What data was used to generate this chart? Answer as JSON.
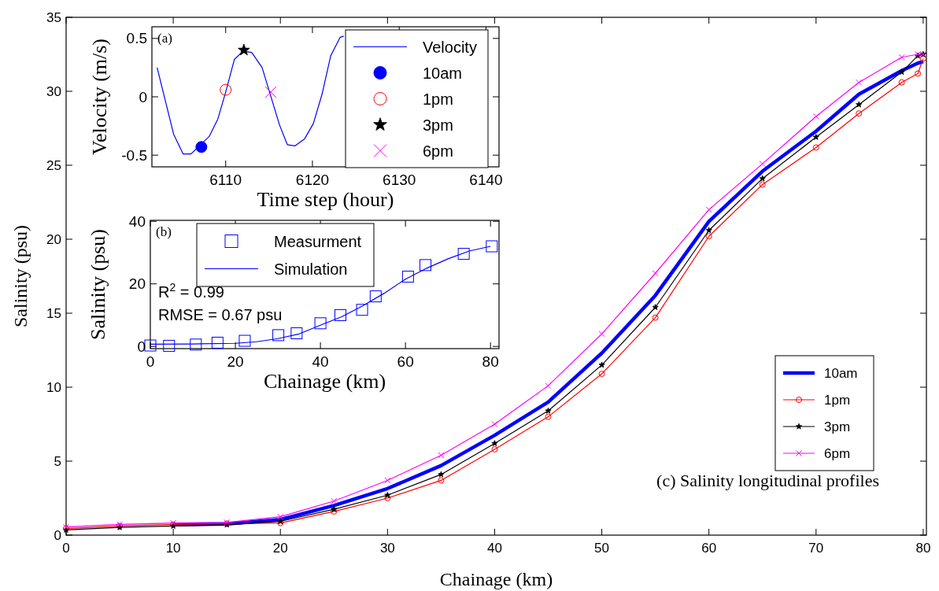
{
  "chart_data": [
    {
      "type": "line",
      "title": "(a)",
      "xlabel": "Time step (hour)",
      "ylabel": "Velocity (m/s)",
      "xlim": [
        6101.5,
        6141.5
      ],
      "ylim": [
        -0.6,
        0.6
      ],
      "xticks": [
        6110,
        6120,
        6130,
        6140
      ],
      "yticks": [
        -0.5,
        0,
        0.5
      ],
      "legend": "right",
      "series": [
        {
          "name": "Velocity",
          "color": "#0000ff",
          "marker": "none",
          "x": [
            6102.1,
            6104.0,
            6105.1,
            6106.0,
            6108.1,
            6109.1,
            6110.0,
            6111.0,
            6112.0,
            6113.0,
            6114.2,
            6116.2,
            6117.1,
            6118.0,
            6119.1,
            6120.1,
            6121.1,
            6122.1,
            6123.2,
            6123.6
          ],
          "values": [
            0.25,
            -0.32,
            -0.49,
            -0.49,
            -0.34,
            -0.19,
            0.04,
            0.32,
            0.39,
            0.38,
            0.25,
            -0.24,
            -0.41,
            -0.42,
            -0.36,
            -0.23,
            0.02,
            0.35,
            0.51,
            0.52
          ]
        },
        {
          "name": "10am",
          "type": "scatter",
          "color": "#0000ff",
          "marker": "circle",
          "x": [
            6107.2
          ],
          "values": [
            -0.43
          ]
        },
        {
          "name": "1pm",
          "type": "scatter",
          "color": "#ff0000",
          "marker": "circle",
          "x": [
            6110.0
          ],
          "values": [
            0.06
          ]
        },
        {
          "name": "3pm",
          "type": "scatter",
          "color": "#000000",
          "marker": "star",
          "x": [
            6112.1
          ],
          "values": [
            0.4
          ]
        },
        {
          "name": "6pm",
          "type": "scatter",
          "color": "#ff00ff",
          "marker": "cross",
          "x": [
            6115.2
          ],
          "values": [
            0.04
          ]
        }
      ]
    },
    {
      "type": "line",
      "title": "(b)",
      "xlabel": "Chainage (km)",
      "ylabel": "Salinity (psu)",
      "xlim": [
        0,
        82
      ],
      "ylim": [
        -0.7,
        40.3
      ],
      "xticks": [
        0,
        20,
        40,
        60,
        80
      ],
      "yticks": [
        0,
        20,
        40
      ],
      "legend": "top",
      "annotations": [
        "R$^{2}$ = 0.99",
        "RMSE = 0.67 psu"
      ],
      "series": [
        {
          "name": "Measurment",
          "type": "scatter",
          "color": "#0000ff",
          "marker": "square",
          "x": [
            0,
            4.4,
            10.7,
            15.8,
            22.2,
            30.1,
            34.4,
            40,
            44.7,
            49.8,
            53,
            60.6,
            64.7,
            73.7,
            80.3
          ],
          "values": [
            0.3,
            0.2,
            0.6,
            1.2,
            1.8,
            3.6,
            4.2,
            7.4,
            10,
            11.7,
            16,
            22.3,
            26,
            29.6,
            32
          ]
        },
        {
          "name": "Simulation",
          "color": "#0000ff",
          "marker": "none",
          "x": [
            0,
            10,
            20,
            25,
            30,
            35,
            40,
            45,
            50,
            55,
            60,
            65,
            70,
            75,
            80
          ],
          "values": [
            0.7,
            0.8,
            1,
            1.5,
            2.5,
            4,
            6.8,
            9.5,
            13,
            17,
            21.5,
            25,
            28,
            30.5,
            32
          ]
        }
      ]
    },
    {
      "type": "line",
      "title": "(c) Salinity longitudinal profiles",
      "xlabel": "Chainage (km)",
      "ylabel": "Salinity (psu)",
      "xlim": [
        0,
        80.3
      ],
      "ylim": [
        0,
        35
      ],
      "xticks": [
        0,
        10,
        20,
        30,
        40,
        50,
        60,
        70,
        80
      ],
      "yticks": [
        0,
        5,
        10,
        15,
        20,
        25,
        30,
        35
      ],
      "legend": "bottom right",
      "x": [
        0,
        5,
        10,
        15,
        20,
        25,
        30,
        35,
        40,
        45,
        50,
        55,
        60,
        65,
        70,
        74,
        78,
        79.5,
        80
      ],
      "series": [
        {
          "name": "10am",
          "color": "#0000ff",
          "marker": "none",
          "values": [
            null,
            null,
            0.7,
            0.76,
            1.05,
            2.0,
            3.15,
            4.7,
            6.75,
            9.0,
            12.3,
            16.2,
            21.2,
            24.6,
            27.3,
            29.8,
            31.4,
            31.9,
            32.0
          ]
        },
        {
          "name": "1pm",
          "color": "#ff0000",
          "marker": "circle",
          "values": [
            0.45,
            0.62,
            0.72,
            0.78,
            0.82,
            1.6,
            2.5,
            3.7,
            5.8,
            8.0,
            10.9,
            14.7,
            20.2,
            23.7,
            26.2,
            28.5,
            30.6,
            31.2,
            32.2
          ]
        },
        {
          "name": "3pm",
          "color": "#000000",
          "marker": "star",
          "values": [
            0.35,
            0.52,
            0.62,
            0.7,
            0.93,
            1.75,
            2.7,
            4.1,
            6.2,
            8.4,
            11.5,
            15.4,
            20.6,
            24.1,
            26.9,
            29.1,
            31.3,
            32.4,
            32.5
          ]
        },
        {
          "name": "6pm",
          "color": "#ff00ff",
          "marker": "cross",
          "values": [
            0.55,
            0.72,
            0.82,
            0.86,
            1.24,
            2.3,
            3.7,
            5.4,
            7.5,
            10.1,
            13.6,
            17.7,
            22.0,
            25.1,
            28.3,
            30.6,
            32.3,
            32.5,
            32.5
          ]
        }
      ]
    }
  ]
}
